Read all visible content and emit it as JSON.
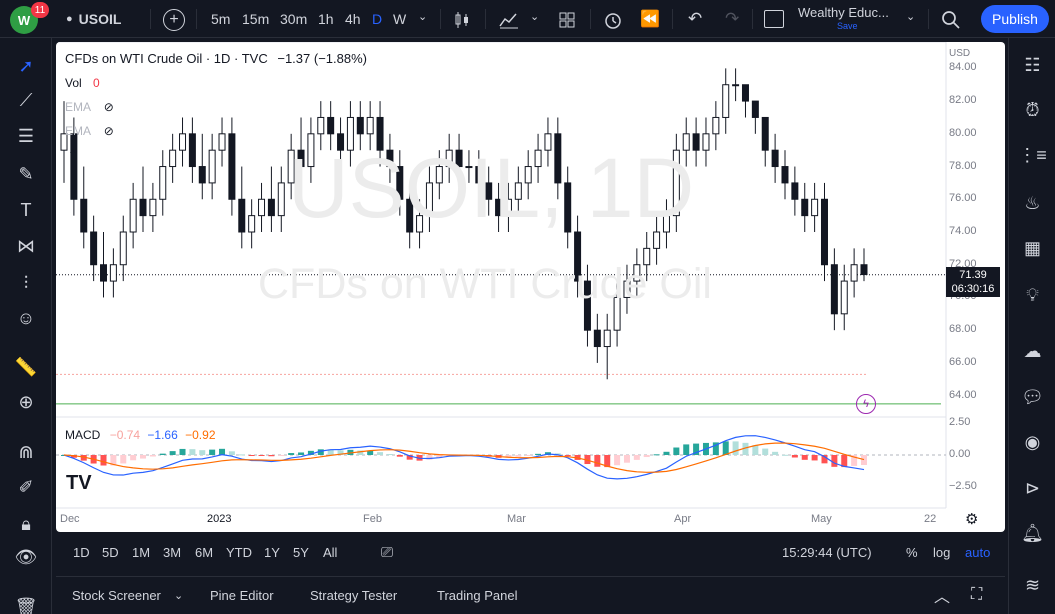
{
  "topbar": {
    "notification_count": "11",
    "symbol": "USOIL",
    "timeframes": [
      {
        "label": "5m"
      },
      {
        "label": "15m"
      },
      {
        "label": "30m"
      },
      {
        "label": "1h"
      },
      {
        "label": "4h"
      },
      {
        "label": "D",
        "active": true
      },
      {
        "label": "W"
      }
    ],
    "layout_name": "Wealthy Educ...",
    "layout_status": "Save",
    "publish_label": "Publish"
  },
  "legend": {
    "title": "CFDs on WTI Crude Oil · 1D · TVC",
    "change": "−1.37 (−1.88%)",
    "vol_label": "Vol",
    "vol_value": "0",
    "ema1": "EMA",
    "ema2": "EMA",
    "macd_label": "MACD",
    "macd_v1": "−0.74",
    "macd_v2": "−1.66",
    "macd_v3": "−0.92"
  },
  "watermark": {
    "symbol": "USOIL, 1D",
    "description": "CFDs on WTI Crude Oil"
  },
  "price_axis": {
    "currency": "USD",
    "labels": [
      "84.00",
      "82.00",
      "80.00",
      "78.00",
      "76.00",
      "74.00",
      "72.00",
      "70.00",
      "68.00",
      "66.00",
      "64.00"
    ],
    "current_price": "71.39",
    "countdown": "06:30:16",
    "macd_labels": [
      "2.50",
      "0.00",
      "−2.50"
    ]
  },
  "time_axis": {
    "labels": [
      "Dec",
      "2023",
      "Feb",
      "Mar",
      "Apr",
      "May",
      "22"
    ]
  },
  "bottombar": {
    "ranges": [
      "1D",
      "5D",
      "1M",
      "3M",
      "6M",
      "YTD",
      "1Y",
      "5Y",
      "All"
    ],
    "clock": "15:29:44 (UTC)",
    "pct": "%",
    "log": "log",
    "auto": "auto"
  },
  "footer": {
    "tabs": [
      "Stock Screener",
      "Pine Editor",
      "Strategy Tester",
      "Trading Panel"
    ]
  },
  "chart_data": {
    "type": "candlestick",
    "symbol": "USOIL",
    "yrange": [
      63,
      85
    ],
    "current_price": 71.39,
    "support_line": 63.5,
    "dotted_line": 65.3,
    "candles": [
      [
        79,
        82,
        77,
        80
      ],
      [
        80,
        81,
        75,
        76
      ],
      [
        76,
        78,
        73,
        74
      ],
      [
        74,
        75,
        71,
        72
      ],
      [
        72,
        74,
        70,
        71
      ],
      [
        71,
        73,
        70,
        72
      ],
      [
        72,
        75,
        71,
        74
      ],
      [
        74,
        77,
        73,
        76
      ],
      [
        76,
        78,
        74,
        75
      ],
      [
        75,
        77,
        74,
        76
      ],
      [
        76,
        79,
        75,
        78
      ],
      [
        78,
        80,
        77,
        79
      ],
      [
        79,
        81,
        78,
        80
      ],
      [
        80,
        81,
        77,
        78
      ],
      [
        78,
        80,
        76,
        77
      ],
      [
        77,
        80,
        76,
        79
      ],
      [
        79,
        81,
        78,
        80
      ],
      [
        80,
        81,
        75,
        76
      ],
      [
        76,
        78,
        73,
        74
      ],
      [
        74,
        76,
        73,
        75
      ],
      [
        75,
        77,
        74,
        76
      ],
      [
        76,
        78,
        74,
        75
      ],
      [
        75,
        78,
        74,
        77
      ],
      [
        77,
        80,
        76,
        79
      ],
      [
        79,
        81,
        77,
        78
      ],
      [
        78,
        81,
        77,
        80
      ],
      [
        80,
        82,
        79,
        81
      ],
      [
        81,
        82,
        79,
        80
      ],
      [
        80,
        81,
        78,
        79
      ],
      [
        79,
        82,
        78,
        81
      ],
      [
        81,
        82,
        79,
        80
      ],
      [
        80,
        82,
        79,
        81
      ],
      [
        81,
        82,
        78,
        79
      ],
      [
        79,
        80,
        77,
        78
      ],
      [
        78,
        79,
        75,
        76
      ],
      [
        76,
        77,
        73,
        74
      ],
      [
        74,
        76,
        73,
        75
      ],
      [
        75,
        78,
        74,
        77
      ],
      [
        77,
        79,
        76,
        78
      ],
      [
        78,
        80,
        77,
        79
      ],
      [
        79,
        80,
        77,
        78
      ],
      [
        78,
        79,
        77,
        78
      ],
      [
        78,
        79,
        76,
        77
      ],
      [
        77,
        78,
        75,
        76
      ],
      [
        76,
        77,
        74,
        75
      ],
      [
        75,
        77,
        74,
        76
      ],
      [
        76,
        78,
        75,
        77
      ],
      [
        77,
        79,
        76,
        78
      ],
      [
        78,
        80,
        77,
        79
      ],
      [
        79,
        81,
        78,
        80
      ],
      [
        80,
        81,
        76,
        77
      ],
      [
        77,
        78,
        73,
        74
      ],
      [
        74,
        75,
        70,
        71
      ],
      [
        71,
        72,
        67,
        68
      ],
      [
        68,
        69,
        66,
        67
      ],
      [
        67,
        69,
        65,
        68
      ],
      [
        68,
        71,
        67,
        70
      ],
      [
        70,
        72,
        69,
        71
      ],
      [
        71,
        73,
        70,
        72
      ],
      [
        72,
        74,
        71,
        73
      ],
      [
        73,
        75,
        72,
        74
      ],
      [
        74,
        76,
        73,
        75
      ],
      [
        75,
        80,
        74,
        79
      ],
      [
        79,
        81,
        78,
        80
      ],
      [
        80,
        81,
        78,
        79
      ],
      [
        79,
        81,
        78,
        80
      ],
      [
        80,
        82,
        79,
        81
      ],
      [
        81,
        84,
        80,
        83
      ],
      [
        83,
        84,
        82,
        83
      ],
      [
        83,
        83,
        81,
        82
      ],
      [
        82,
        82,
        80,
        81
      ],
      [
        81,
        81,
        78,
        79
      ],
      [
        79,
        80,
        77,
        78
      ],
      [
        78,
        79,
        76,
        77
      ],
      [
        77,
        78,
        75,
        76
      ],
      [
        76,
        77,
        74,
        75
      ],
      [
        75,
        77,
        74,
        76
      ],
      [
        76,
        77,
        71,
        72
      ],
      [
        72,
        73,
        68,
        69
      ],
      [
        69,
        72,
        68,
        71
      ],
      [
        71,
        73,
        70,
        72
      ],
      [
        72,
        73,
        71,
        71.4
      ]
    ],
    "macd": {
      "labels": [
        "MACD"
      ],
      "yrange": [
        -3,
        3
      ]
    }
  }
}
